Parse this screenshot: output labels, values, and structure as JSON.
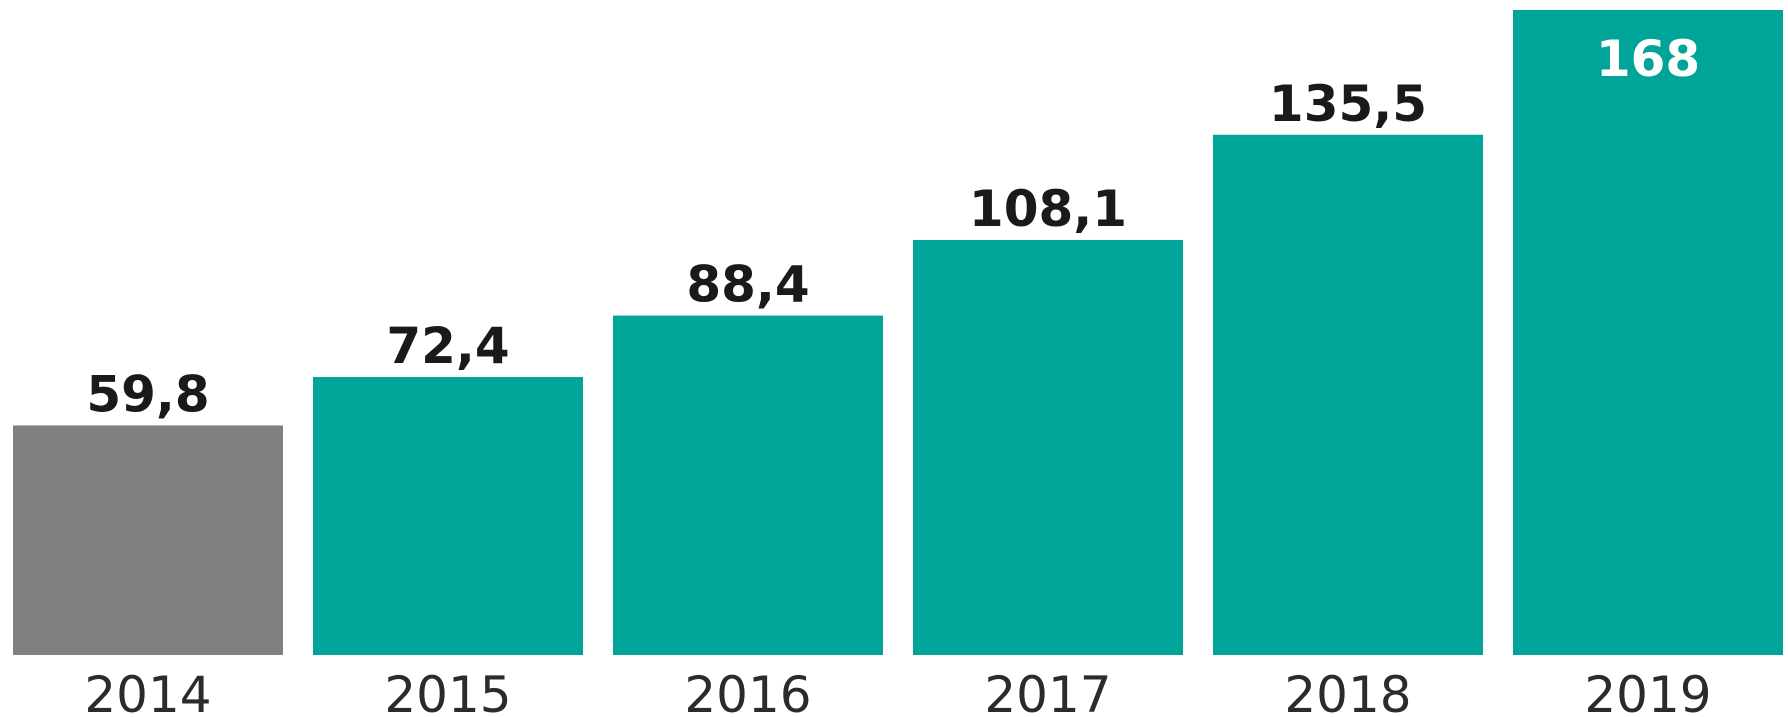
{
  "chart_data": {
    "type": "bar",
    "title": "",
    "xlabel": "",
    "ylabel": "",
    "categories": [
      "2014",
      "2015",
      "2016",
      "2017",
      "2018",
      "2019"
    ],
    "values": [
      59.8,
      72.4,
      88.4,
      108.1,
      135.5,
      168
    ],
    "value_labels": [
      "59,8",
      "72,4",
      "88,4",
      "108,1",
      "135,5",
      "168"
    ],
    "ylim": [
      0,
      168
    ],
    "grid": false,
    "legend": "none",
    "bar_colors": [
      "#808080",
      "#00a499",
      "#00a499",
      "#00a499",
      "#00a499",
      "#00a499"
    ],
    "label_colors": [
      "#1a1a1a",
      "#1a1a1a",
      "#1a1a1a",
      "#1a1a1a",
      "#1a1a1a",
      "#ffffff"
    ],
    "label_positions": [
      "above",
      "above",
      "above",
      "above",
      "above",
      "inside"
    ]
  }
}
